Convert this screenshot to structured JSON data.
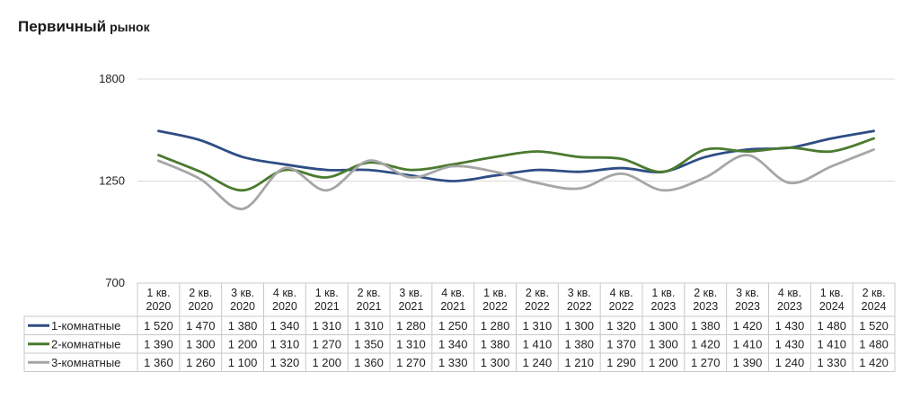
{
  "title_main": "Первичный",
  "title_sub": "рынок",
  "chart_data": {
    "type": "line",
    "title": "Первичный рынок",
    "yticks": [
      700,
      1250,
      1800
    ],
    "ylim": [
      700,
      1800
    ],
    "grid": true,
    "legend": "table-left",
    "categories": [
      [
        "1 кв.",
        "2020"
      ],
      [
        "2 кв.",
        "2020"
      ],
      [
        "3 кв.",
        "2020"
      ],
      [
        "4 кв.",
        "2020"
      ],
      [
        "1 кв.",
        "2021"
      ],
      [
        "2 кв.",
        "2021"
      ],
      [
        "3 кв.",
        "2021"
      ],
      [
        "4 кв.",
        "2021"
      ],
      [
        "1 кв.",
        "2022"
      ],
      [
        "2 кв.",
        "2022"
      ],
      [
        "3 кв.",
        "2022"
      ],
      [
        "4 кв.",
        "2022"
      ],
      [
        "1 кв.",
        "2023"
      ],
      [
        "2 кв.",
        "2023"
      ],
      [
        "3 кв.",
        "2023"
      ],
      [
        "4 кв.",
        "2023"
      ],
      [
        "1 кв.",
        "2024"
      ],
      [
        "2 кв.",
        "2024"
      ]
    ],
    "series": [
      {
        "name": "1-комнатные",
        "color": "#2e4d84",
        "values": [
          1520,
          1470,
          1380,
          1340,
          1310,
          1310,
          1280,
          1250,
          1280,
          1310,
          1300,
          1320,
          1300,
          1380,
          1420,
          1430,
          1480,
          1520
        ]
      },
      {
        "name": "2-комнатные",
        "color": "#4a7a2e",
        "values": [
          1390,
          1300,
          1200,
          1310,
          1270,
          1350,
          1310,
          1340,
          1380,
          1410,
          1380,
          1370,
          1300,
          1420,
          1410,
          1430,
          1410,
          1480
        ]
      },
      {
        "name": "3-комнатные",
        "color": "#a6a6a6",
        "values": [
          1360,
          1260,
          1100,
          1320,
          1200,
          1360,
          1270,
          1330,
          1300,
          1240,
          1210,
          1290,
          1200,
          1270,
          1390,
          1240,
          1330,
          1420
        ]
      }
    ]
  }
}
